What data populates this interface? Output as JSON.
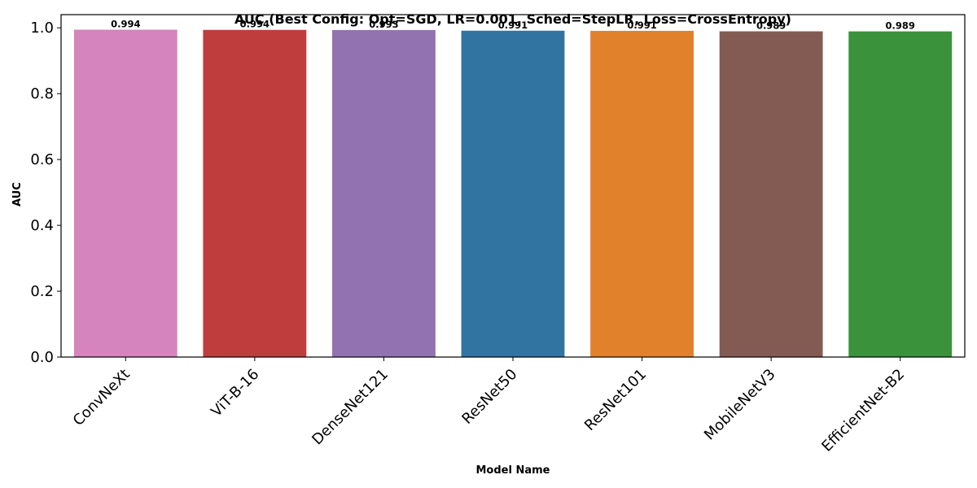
{
  "chart_data": {
    "type": "bar",
    "title": "AUC (Best Config: Opt=SGD, LR=0.001, Sched=StepLR, Loss=CrossEntropy)",
    "xlabel": "Model Name",
    "ylabel": "AUC",
    "ylim": [
      0,
      1.04
    ],
    "yticks": [
      "0.0",
      "0.2",
      "0.4",
      "0.6",
      "0.8",
      "1.0"
    ],
    "grid": false,
    "categories": [
      "ConvNeXt",
      "ViT-B-16",
      "DenseNet121",
      "ResNet50",
      "ResNet101",
      "MobileNetV3",
      "EfficientNet-B2"
    ],
    "values": [
      0.9943,
      0.9937,
      0.9933,
      0.9912,
      0.9908,
      0.9893,
      0.9891
    ],
    "value_labels": [
      "0.994",
      "0.994",
      "0.993",
      "0.991",
      "0.991",
      "0.989",
      "0.989"
    ],
    "colors": [
      "#d684bd",
      "#c03d3e",
      "#9372b2",
      "#3274a1",
      "#e1812c",
      "#845b53",
      "#3a923a"
    ]
  }
}
